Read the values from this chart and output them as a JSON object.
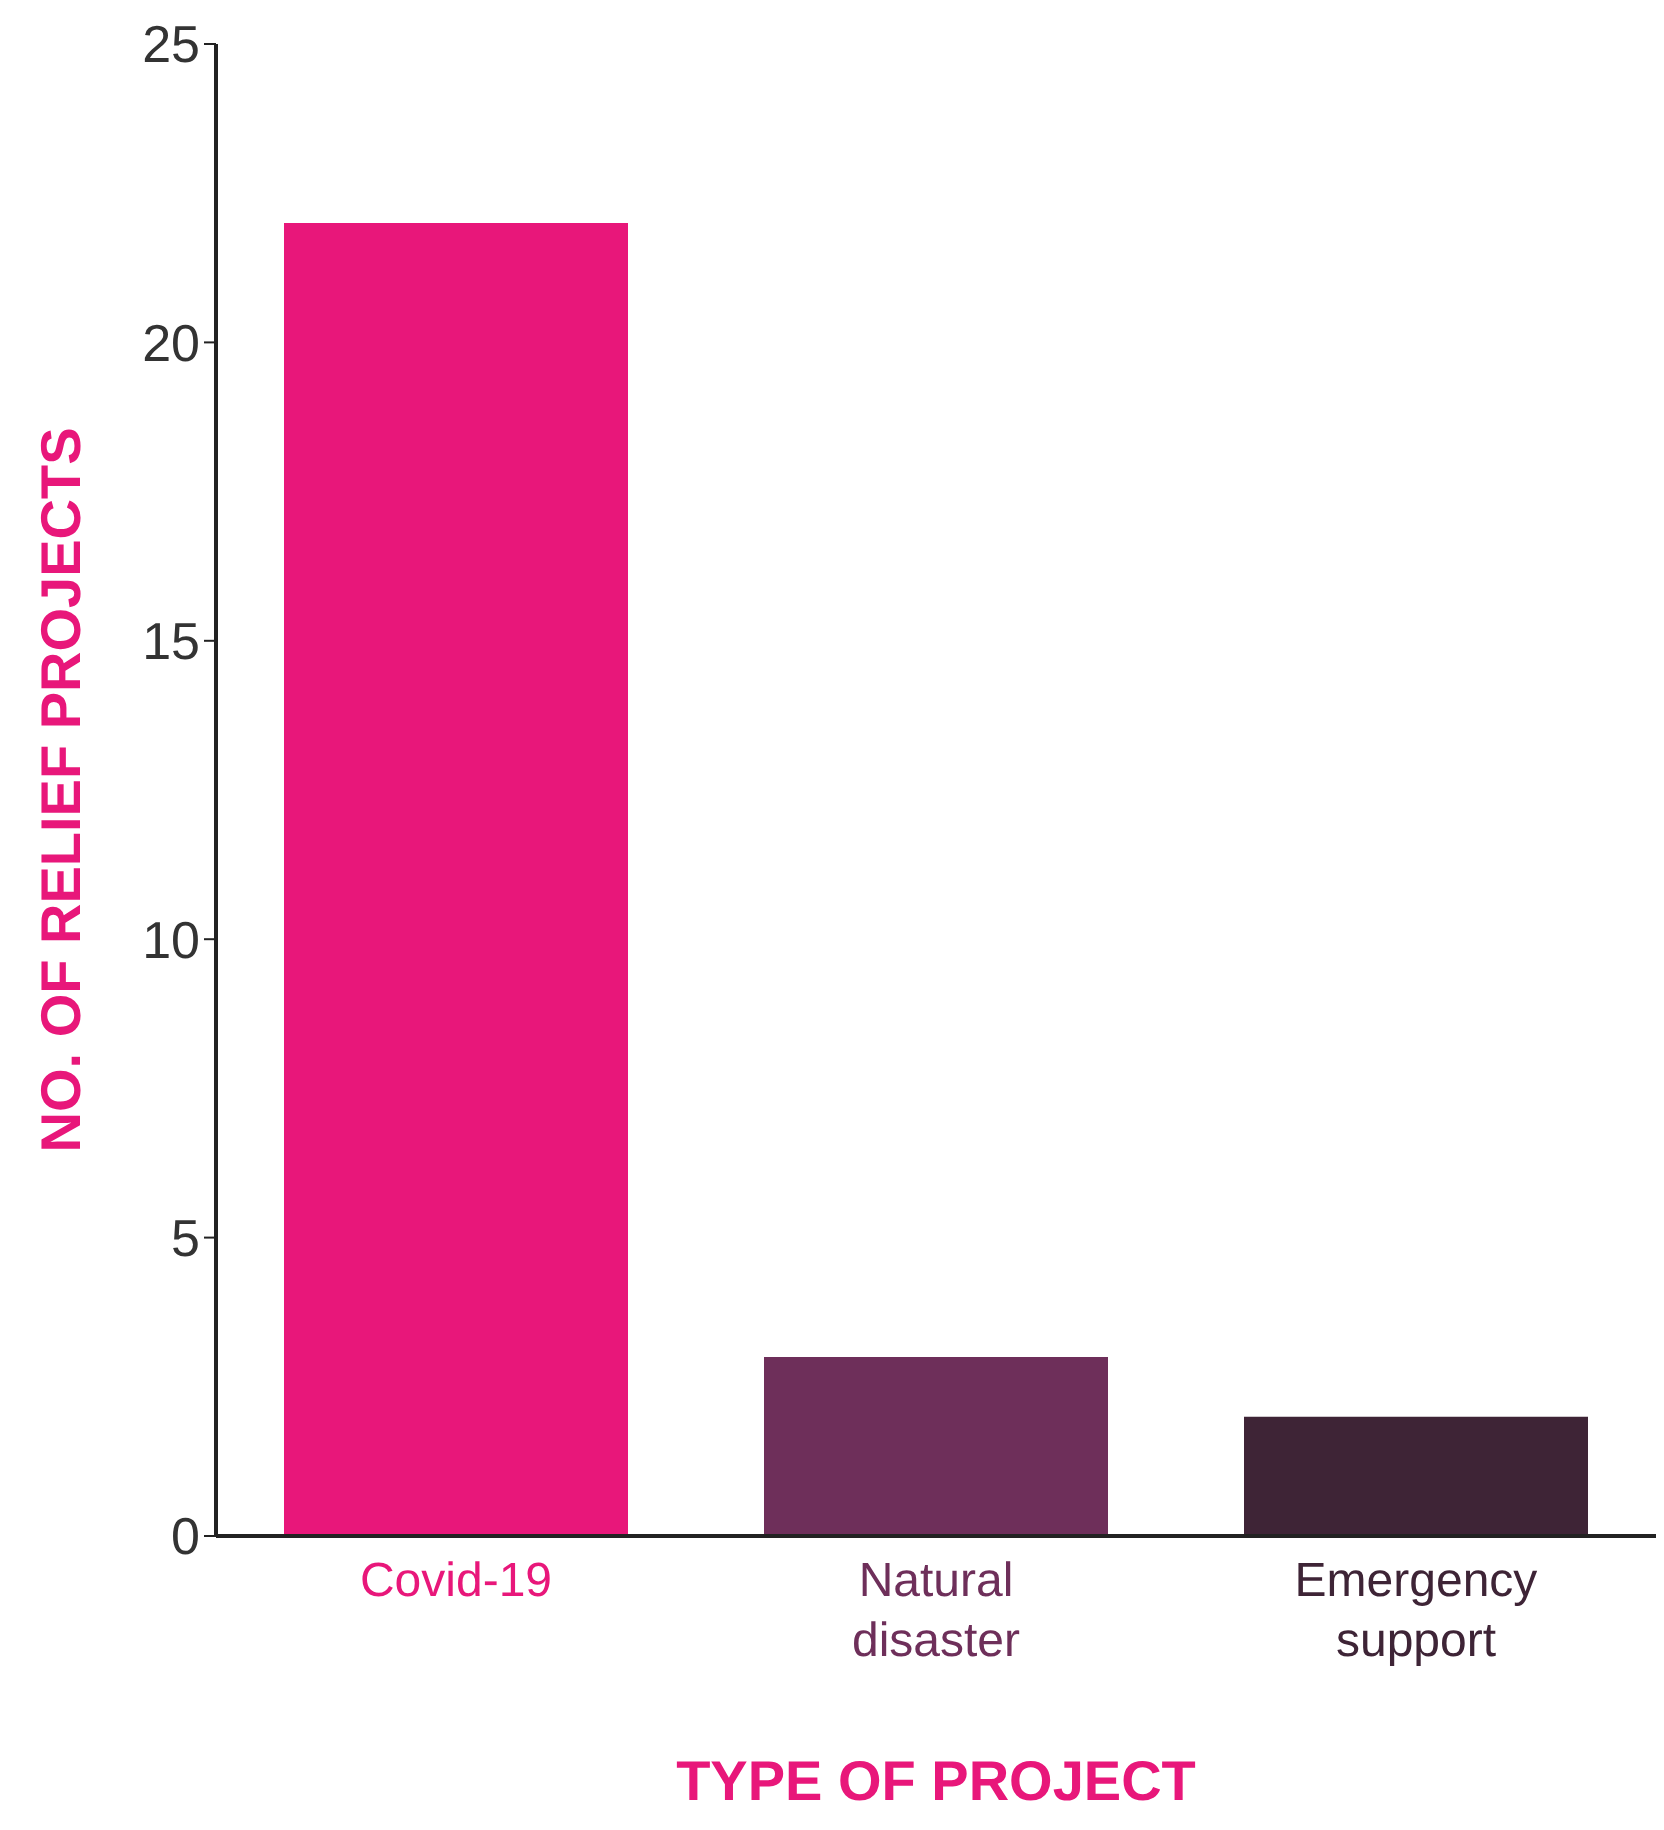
{
  "chart_data": {
    "type": "bar",
    "categories": [
      "Covid-19",
      "Natural disaster",
      "Emergency support"
    ],
    "values": [
      22,
      3,
      2
    ],
    "colors": [
      "#e8177a",
      "#6e2f5a",
      "#3e2436"
    ],
    "xlabel": "TYPE OF PROJECT",
    "ylabel": "NO. OF RELIEF PROJECTS",
    "ylim": [
      0,
      25
    ],
    "yticks": [
      0,
      5,
      10,
      15,
      20,
      25
    ],
    "grid": false,
    "legend": false
  }
}
